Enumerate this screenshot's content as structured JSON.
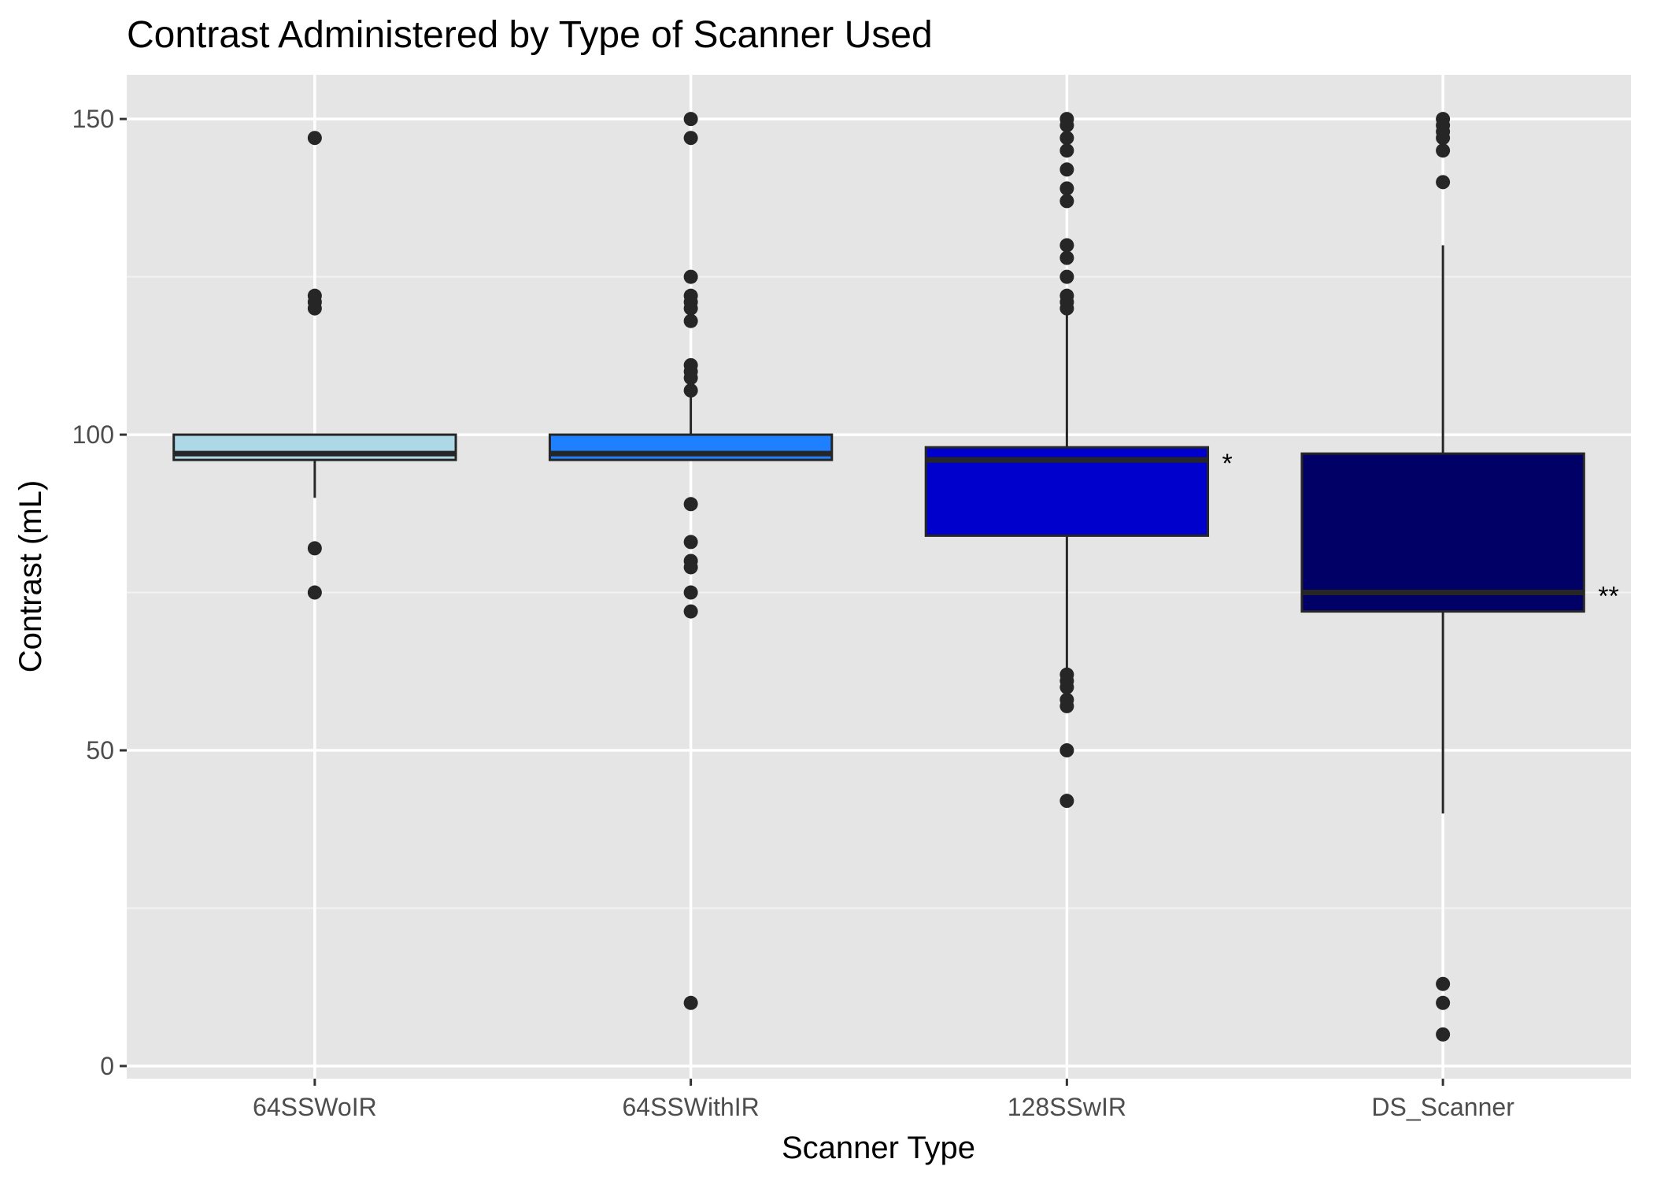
{
  "chart_data": {
    "type": "box",
    "title": "Contrast Administered by Type of Scanner Used",
    "xlabel": "Scanner Type",
    "ylabel": "Contrast (mL)",
    "ylim": [
      -2,
      157
    ],
    "yticks": [
      0,
      50,
      100,
      150
    ],
    "grid": true,
    "legend": "none",
    "categories": [
      "64SSWoIR",
      "64SSWithIR",
      "128SSwIR",
      "DS_Scanner"
    ],
    "series": [
      {
        "category": "64SSWoIR",
        "fill": "#add8e6",
        "q1": 96,
        "median": 97,
        "q3": 100,
        "whisker_low": 90,
        "whisker_high": 100,
        "outliers": [
          147,
          122,
          121,
          120,
          82,
          75
        ],
        "annotation": ""
      },
      {
        "category": "64SSWithIR",
        "fill": "#1e7fff",
        "q1": 96,
        "median": 97,
        "q3": 100,
        "whisker_low": 96,
        "whisker_high": 106,
        "outliers": [
          150,
          147,
          125,
          122,
          121,
          120,
          118,
          111,
          110,
          109,
          107,
          89,
          83,
          80,
          79,
          75,
          72,
          10
        ],
        "annotation": ""
      },
      {
        "category": "128SSwIR",
        "fill": "#0000cd",
        "q1": 84,
        "median": 96,
        "q3": 98,
        "whisker_low": 63,
        "whisker_high": 119,
        "outliers": [
          150,
          149,
          147,
          145,
          142,
          139,
          137,
          130,
          128,
          125,
          122,
          121,
          120,
          62,
          61,
          60,
          58,
          57,
          50,
          42
        ],
        "annotation": "*"
      },
      {
        "category": "DS_Scanner",
        "fill": "#000066",
        "q1": 72,
        "median": 75,
        "q3": 97,
        "whisker_low": 40,
        "whisker_high": 130,
        "outliers": [
          150,
          149,
          148,
          147,
          145,
          140,
          13,
          10,
          5
        ],
        "annotation": "**"
      }
    ]
  }
}
